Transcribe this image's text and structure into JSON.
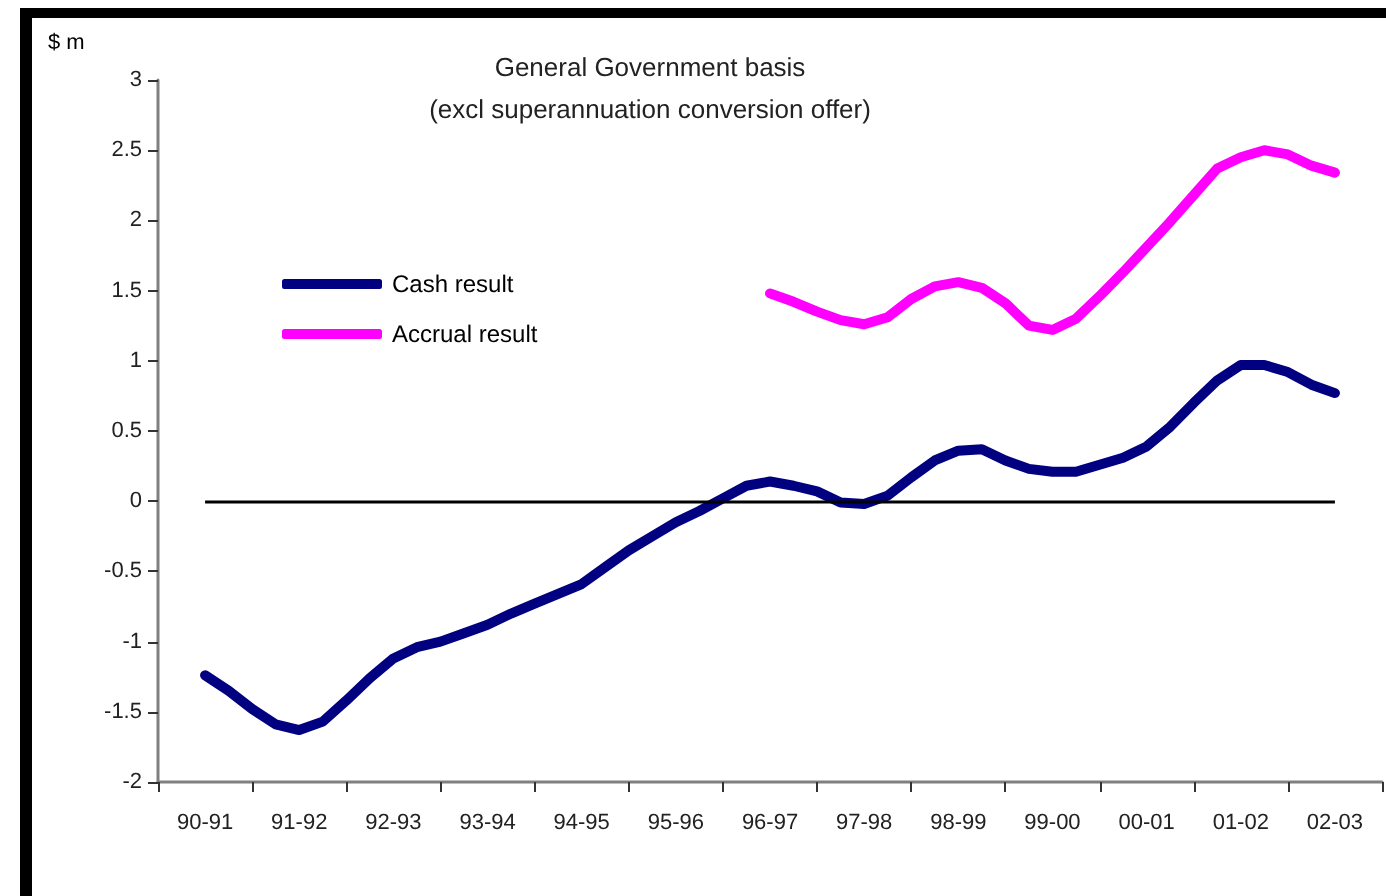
{
  "chart_data": {
    "type": "line",
    "title": "General Government basis",
    "subtitle": "(excl superannuation conversion offer)",
    "ylabel": "$ m",
    "categories": [
      null,
      null,
      "90-91",
      null,
      null,
      null,
      "91-92",
      null,
      null,
      null,
      "92-93",
      null,
      null,
      null,
      "93-94",
      null,
      null,
      null,
      "94-95",
      null,
      null,
      null,
      "95-96",
      null,
      null,
      null,
      "96-97",
      null,
      null,
      null,
      "97-98",
      null,
      null,
      null,
      "98-99",
      null,
      null,
      null,
      "99-00",
      null,
      null,
      null,
      "00-01",
      null,
      null,
      null,
      "01-02",
      null,
      null,
      null,
      "02-03",
      null,
      null
    ],
    "ylim": [
      -2,
      3
    ],
    "yticks": [
      -2,
      -1.5,
      -1,
      -0.5,
      0,
      0.5,
      1,
      1.5,
      2,
      2.5,
      3
    ],
    "series": [
      {
        "name": "Cash result",
        "color": "#000080",
        "values": [
          null,
          null,
          -1.24,
          -1.35,
          -1.48,
          -1.59,
          -1.63,
          -1.57,
          -1.42,
          -1.26,
          -1.12,
          -1.04,
          -1.0,
          -0.94,
          -0.88,
          -0.8,
          -0.73,
          -0.66,
          -0.59,
          -0.47,
          -0.35,
          -0.25,
          -0.15,
          -0.07,
          0.02,
          0.11,
          0.14,
          0.11,
          0.07,
          -0.01,
          -0.02,
          0.04,
          0.17,
          0.29,
          0.36,
          0.37,
          0.29,
          0.23,
          0.21,
          0.21,
          0.26,
          0.31,
          0.39,
          0.53,
          0.7,
          0.86,
          0.97,
          0.97,
          0.92,
          0.83,
          0.77,
          null,
          null
        ]
      },
      {
        "name": "Accrual result",
        "color": "#ff00ff",
        "values": [
          null,
          null,
          null,
          null,
          null,
          null,
          null,
          null,
          null,
          null,
          null,
          null,
          null,
          null,
          null,
          null,
          null,
          null,
          null,
          null,
          null,
          null,
          null,
          null,
          null,
          null,
          1.48,
          1.42,
          1.35,
          1.29,
          1.26,
          1.31,
          1.44,
          1.53,
          1.56,
          1.52,
          1.41,
          1.25,
          1.22,
          1.3,
          1.46,
          1.63,
          1.81,
          1.99,
          2.18,
          2.37,
          2.45,
          2.5,
          2.47,
          2.39,
          2.34,
          null,
          null
        ]
      }
    ],
    "ref_lines": [
      {
        "axis": "y",
        "value": 0,
        "color": "#000000"
      }
    ],
    "legend": "top left",
    "grid": false,
    "marker": "none"
  }
}
